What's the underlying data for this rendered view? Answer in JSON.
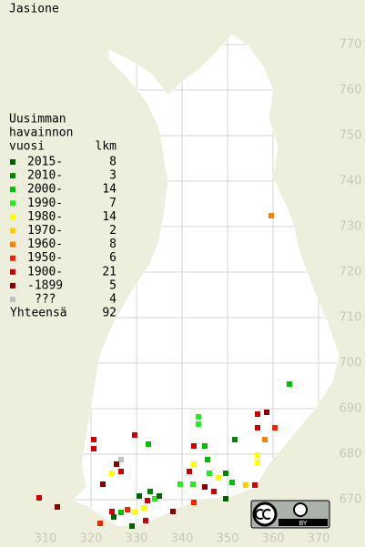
{
  "title": "Jasione",
  "legend": {
    "heading": [
      "Uusimman",
      "havainnon",
      "vuosi"
    ],
    "count_heading": "lkm",
    "items": [
      {
        "label": "2015-",
        "count": 8,
        "color": "#006400"
      },
      {
        "label": "2010-",
        "count": 3,
        "color": "#008800"
      },
      {
        "label": "2000-",
        "count": 14,
        "color": "#00c000"
      },
      {
        "label": "1990-",
        "count": 7,
        "color": "#22ee22"
      },
      {
        "label": "1980-",
        "count": 14,
        "color": "#ffff00"
      },
      {
        "label": "1970-",
        "count": 2,
        "color": "#ffcc00"
      },
      {
        "label": "1960-",
        "count": 8,
        "color": "#ff8000"
      },
      {
        "label": "1950-",
        "count": 6,
        "color": "#ff2000"
      },
      {
        "label": "1900-",
        "count": 21,
        "color": "#cc0000"
      },
      {
        "label": "-1899",
        "count": 5,
        "color": "#880000"
      },
      {
        "label": "???",
        "count": 4,
        "color": "#c0c0c0"
      }
    ],
    "total_label": "Yhteensä",
    "total": 92
  },
  "map": {
    "xlim": [
      300,
      380
    ],
    "ylim": [
      660,
      780
    ],
    "xticks": [
      310,
      320,
      330,
      340,
      350,
      360,
      370
    ],
    "yticks": [
      670,
      680,
      690,
      700,
      710,
      720,
      730,
      740,
      750,
      760,
      770
    ],
    "points": {
      "x": [
        359.6,
        363.6,
        343.6,
        343.6,
        356.6,
        356.6,
        358.6,
        360.4,
        358.2,
        356.6,
        356.6,
        351.6,
        345,
        342.6,
        342.6,
        320.6,
        320.6,
        329.6,
        332.6,
        326.6,
        325.6,
        324.6,
        326.6,
        322.6,
        345.6,
        341.6,
        346,
        348,
        349.6,
        351,
        354,
        356,
        345,
        347,
        342.4,
        339.6,
        342.6,
        338,
        334,
        335,
        333,
        332.4,
        330.6,
        331.6,
        329.6,
        328,
        326.6,
        325,
        324.6,
        329,
        332,
        322,
        312.6,
        308.6,
        349.6
      ],
      "y": [
        732.4,
        695.4,
        688.2,
        686.6,
        688.8,
        685.8,
        689.2,
        685.8,
        683.2,
        679.8,
        678.2,
        683.2,
        681.8,
        681.8,
        677.8,
        683.2,
        681.2,
        684.2,
        682.2,
        678.8,
        677.8,
        675.8,
        676.2,
        673.4,
        678.8,
        676.2,
        675.8,
        674.8,
        675.8,
        673.8,
        673.2,
        673.2,
        672.8,
        671.8,
        673.4,
        673.4,
        669.4,
        667.4,
        670.2,
        670.8,
        671.8,
        669.8,
        670.8,
        668.2,
        667.2,
        667.8,
        667.2,
        666.2,
        667.4,
        664.2,
        665.4,
        664.8,
        668.4,
        670.4,
        670.2
      ],
      "class": [
        6,
        2,
        3,
        3,
        8,
        8,
        9,
        7,
        6,
        4,
        4,
        1,
        2,
        8,
        4,
        8,
        8,
        8,
        2,
        10,
        9,
        4,
        8,
        9,
        2,
        8,
        3,
        4,
        1,
        2,
        5,
        8,
        9,
        8,
        3,
        3,
        7,
        9,
        3,
        0,
        1,
        8,
        0,
        4,
        4,
        7,
        2,
        0,
        8,
        0,
        8,
        7,
        9,
        8,
        0
      ]
    }
  },
  "license": {
    "label": "BY"
  }
}
